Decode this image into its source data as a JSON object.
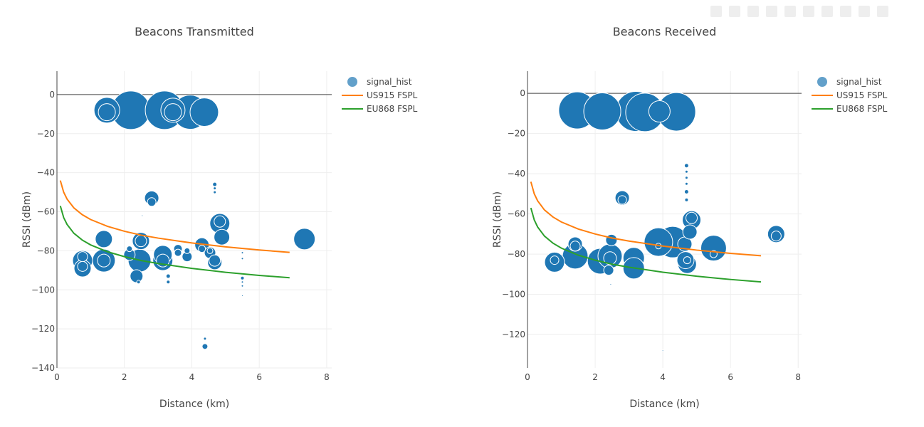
{
  "colors": {
    "bubble": "#1f77b4",
    "us915": "#ff7f0e",
    "eu868": "#2ca02c",
    "grid": "#eeeeee",
    "zeroline": "#444444"
  },
  "modebar": {
    "icons": [
      "camera-icon",
      "zoom-icon",
      "pan-icon",
      "box-select-icon",
      "lasso-icon",
      "zoom-in-icon",
      "zoom-out-icon",
      "autoscale-icon",
      "reset-icon",
      "plotly-logo-icon"
    ]
  },
  "chart_data": [
    {
      "type": "scatter",
      "title": "Beacons Transmitted",
      "xlabel": "Distance (km)",
      "ylabel": "RSSI (dBm)",
      "xlim": [
        0,
        8.15
      ],
      "ylim": [
        -140,
        12
      ],
      "xticks": [
        0,
        2,
        4,
        6,
        8
      ],
      "yticks": [
        0,
        -20,
        -40,
        -60,
        -80,
        -100,
        -120,
        -140
      ],
      "grid": true,
      "legend_placement": "top-right",
      "legend": [
        "signal_hist",
        "US915 FSPL",
        "EU868 FSPL"
      ],
      "bubbles": {
        "name": "signal_hist",
        "points": [
          [
            2.19,
            -8,
            54
          ],
          [
            3.19,
            -8,
            54
          ],
          [
            3.95,
            -9,
            48
          ],
          [
            4.37,
            -9,
            40
          ],
          [
            1.48,
            -8,
            36
          ],
          [
            1.48,
            -9,
            24
          ],
          [
            3.44,
            -8,
            34
          ],
          [
            3.44,
            -9,
            24
          ],
          [
            2.81,
            -53,
            20
          ],
          [
            2.81,
            -55,
            12
          ],
          [
            7.34,
            -74,
            30
          ],
          [
            1.39,
            -74,
            24
          ],
          [
            1.39,
            -85,
            32
          ],
          [
            1.39,
            -85,
            18
          ],
          [
            0.76,
            -85,
            28
          ],
          [
            0.76,
            -83,
            14
          ],
          [
            0.76,
            -89,
            24
          ],
          [
            0.76,
            -88,
            14
          ],
          [
            2.49,
            -75,
            24
          ],
          [
            2.49,
            -75,
            16
          ],
          [
            2.45,
            -85,
            32
          ],
          [
            2.15,
            -82,
            16
          ],
          [
            2.15,
            -79,
            8
          ],
          [
            2.36,
            -93,
            18
          ],
          [
            3.14,
            -82,
            26
          ],
          [
            3.14,
            -85,
            28
          ],
          [
            3.14,
            -85,
            18
          ],
          [
            3.59,
            -79,
            12
          ],
          [
            3.59,
            -81,
            10
          ],
          [
            3.86,
            -83,
            14
          ],
          [
            3.86,
            -80,
            8
          ],
          [
            4.3,
            -77,
            20
          ],
          [
            4.3,
            -79,
            10
          ],
          [
            4.54,
            -81,
            16
          ],
          [
            4.54,
            -80,
            8
          ],
          [
            4.68,
            -86,
            20
          ],
          [
            4.68,
            -85,
            16
          ],
          [
            4.83,
            -66,
            28
          ],
          [
            4.83,
            -65,
            16
          ],
          [
            4.89,
            -73,
            22
          ],
          [
            4.68,
            -46,
            6
          ],
          [
            4.68,
            -48,
            4
          ],
          [
            4.68,
            -50,
            4
          ],
          [
            4.39,
            -129,
            8
          ],
          [
            4.39,
            -125,
            4
          ],
          [
            5.5,
            -81,
            3
          ],
          [
            5.5,
            -84,
            3
          ],
          [
            5.5,
            -94,
            5
          ],
          [
            5.5,
            -96,
            3
          ],
          [
            5.5,
            -98,
            3
          ],
          [
            5.5,
            -103,
            2
          ],
          [
            3.3,
            -93,
            6
          ],
          [
            3.3,
            -96,
            5
          ],
          [
            2.42,
            -96,
            5
          ],
          [
            2.53,
            -62,
            2
          ]
        ]
      },
      "lines": [
        {
          "name": "US915 FSPL",
          "x": [
            0.1,
            0.2,
            0.3,
            0.5,
            0.75,
            1,
            1.5,
            2,
            2.5,
            3,
            4,
            5,
            6,
            6.9
          ],
          "y": [
            -44,
            -50,
            -53.5,
            -58,
            -61.5,
            -64,
            -67.5,
            -70,
            -72,
            -73.5,
            -76,
            -78,
            -79.6,
            -80.8
          ]
        },
        {
          "name": "EU868 FSPL",
          "x": [
            0.1,
            0.2,
            0.3,
            0.5,
            0.75,
            1,
            1.5,
            2,
            2.5,
            3,
            4,
            5,
            6,
            6.9
          ],
          "y": [
            -57,
            -63,
            -66.5,
            -71,
            -74.5,
            -77,
            -80.5,
            -83,
            -85,
            -86.5,
            -89,
            -91,
            -92.6,
            -93.8
          ]
        }
      ]
    },
    {
      "type": "scatter",
      "title": "Beacons Received",
      "xlabel": "Distance (km)",
      "ylabel": "RSSI (dBm)",
      "xlim": [
        0,
        8.1
      ],
      "ylim": [
        -136.6,
        11
      ],
      "xticks": [
        0,
        2,
        4,
        6,
        8
      ],
      "yticks": [
        0,
        -20,
        -40,
        -60,
        -80,
        -100,
        -120
      ],
      "grid": true,
      "legend_placement": "top-right",
      "legend": [
        "signal_hist",
        "US915 FSPL",
        "EU868 FSPL"
      ],
      "bubbles": {
        "name": "signal_hist",
        "points": [
          [
            1.47,
            -8.5,
            52
          ],
          [
            2.21,
            -9,
            52
          ],
          [
            3.2,
            -9,
            56
          ],
          [
            3.47,
            -9.5,
            54
          ],
          [
            4.4,
            -9.2,
            54
          ],
          [
            3.9,
            -9,
            30
          ],
          [
            2.8,
            -52,
            20
          ],
          [
            2.8,
            -53,
            12
          ],
          [
            7.35,
            -70,
            24
          ],
          [
            7.35,
            -71,
            14
          ],
          [
            0.8,
            -84,
            28
          ],
          [
            0.8,
            -83,
            12
          ],
          [
            1.41,
            -75,
            20
          ],
          [
            1.41,
            -76,
            14
          ],
          [
            1.41,
            -81,
            36
          ],
          [
            2.15,
            -83.5,
            36
          ],
          [
            2.44,
            -81,
            34
          ],
          [
            2.44,
            -82,
            18
          ],
          [
            2.48,
            -73,
            16
          ],
          [
            2.4,
            -88,
            14
          ],
          [
            3.14,
            -82,
            30
          ],
          [
            3.14,
            -87,
            30
          ],
          [
            3.87,
            -74,
            40
          ],
          [
            4.29,
            -74,
            44
          ],
          [
            3.87,
            -76,
            8
          ],
          [
            4.65,
            -75,
            20
          ],
          [
            4.8,
            -69,
            20
          ],
          [
            4.85,
            -63,
            26
          ],
          [
            4.85,
            -62,
            16
          ],
          [
            4.67,
            -83,
            24
          ],
          [
            4.72,
            -85,
            26
          ],
          [
            4.72,
            -83,
            10
          ],
          [
            5.5,
            -77,
            36
          ],
          [
            5.5,
            -80,
            10
          ],
          [
            4.7,
            -36,
            6
          ],
          [
            4.7,
            -39,
            4
          ],
          [
            4.7,
            -42,
            4
          ],
          [
            4.7,
            -45,
            4
          ],
          [
            4.7,
            -49,
            6
          ],
          [
            4.7,
            -53,
            5
          ],
          [
            2.46,
            -95,
            2
          ],
          [
            4.0,
            -128,
            2
          ]
        ]
      },
      "lines": [
        {
          "name": "US915 FSPL",
          "x": [
            0.1,
            0.2,
            0.3,
            0.5,
            0.75,
            1,
            1.5,
            2,
            2.5,
            3,
            4,
            5,
            6,
            6.9
          ],
          "y": [
            -44,
            -50,
            -53.5,
            -58,
            -61.5,
            -64,
            -67.5,
            -70,
            -72,
            -73.5,
            -76,
            -78,
            -79.6,
            -80.8
          ]
        },
        {
          "name": "EU868 FSPL",
          "x": [
            0.1,
            0.2,
            0.3,
            0.5,
            0.75,
            1,
            1.5,
            2,
            2.5,
            3,
            4,
            5,
            6,
            6.9
          ],
          "y": [
            -57,
            -63,
            -66.5,
            -71,
            -74.5,
            -77,
            -80.5,
            -83,
            -85,
            -86.5,
            -89,
            -91,
            -92.6,
            -93.8
          ]
        }
      ]
    }
  ]
}
